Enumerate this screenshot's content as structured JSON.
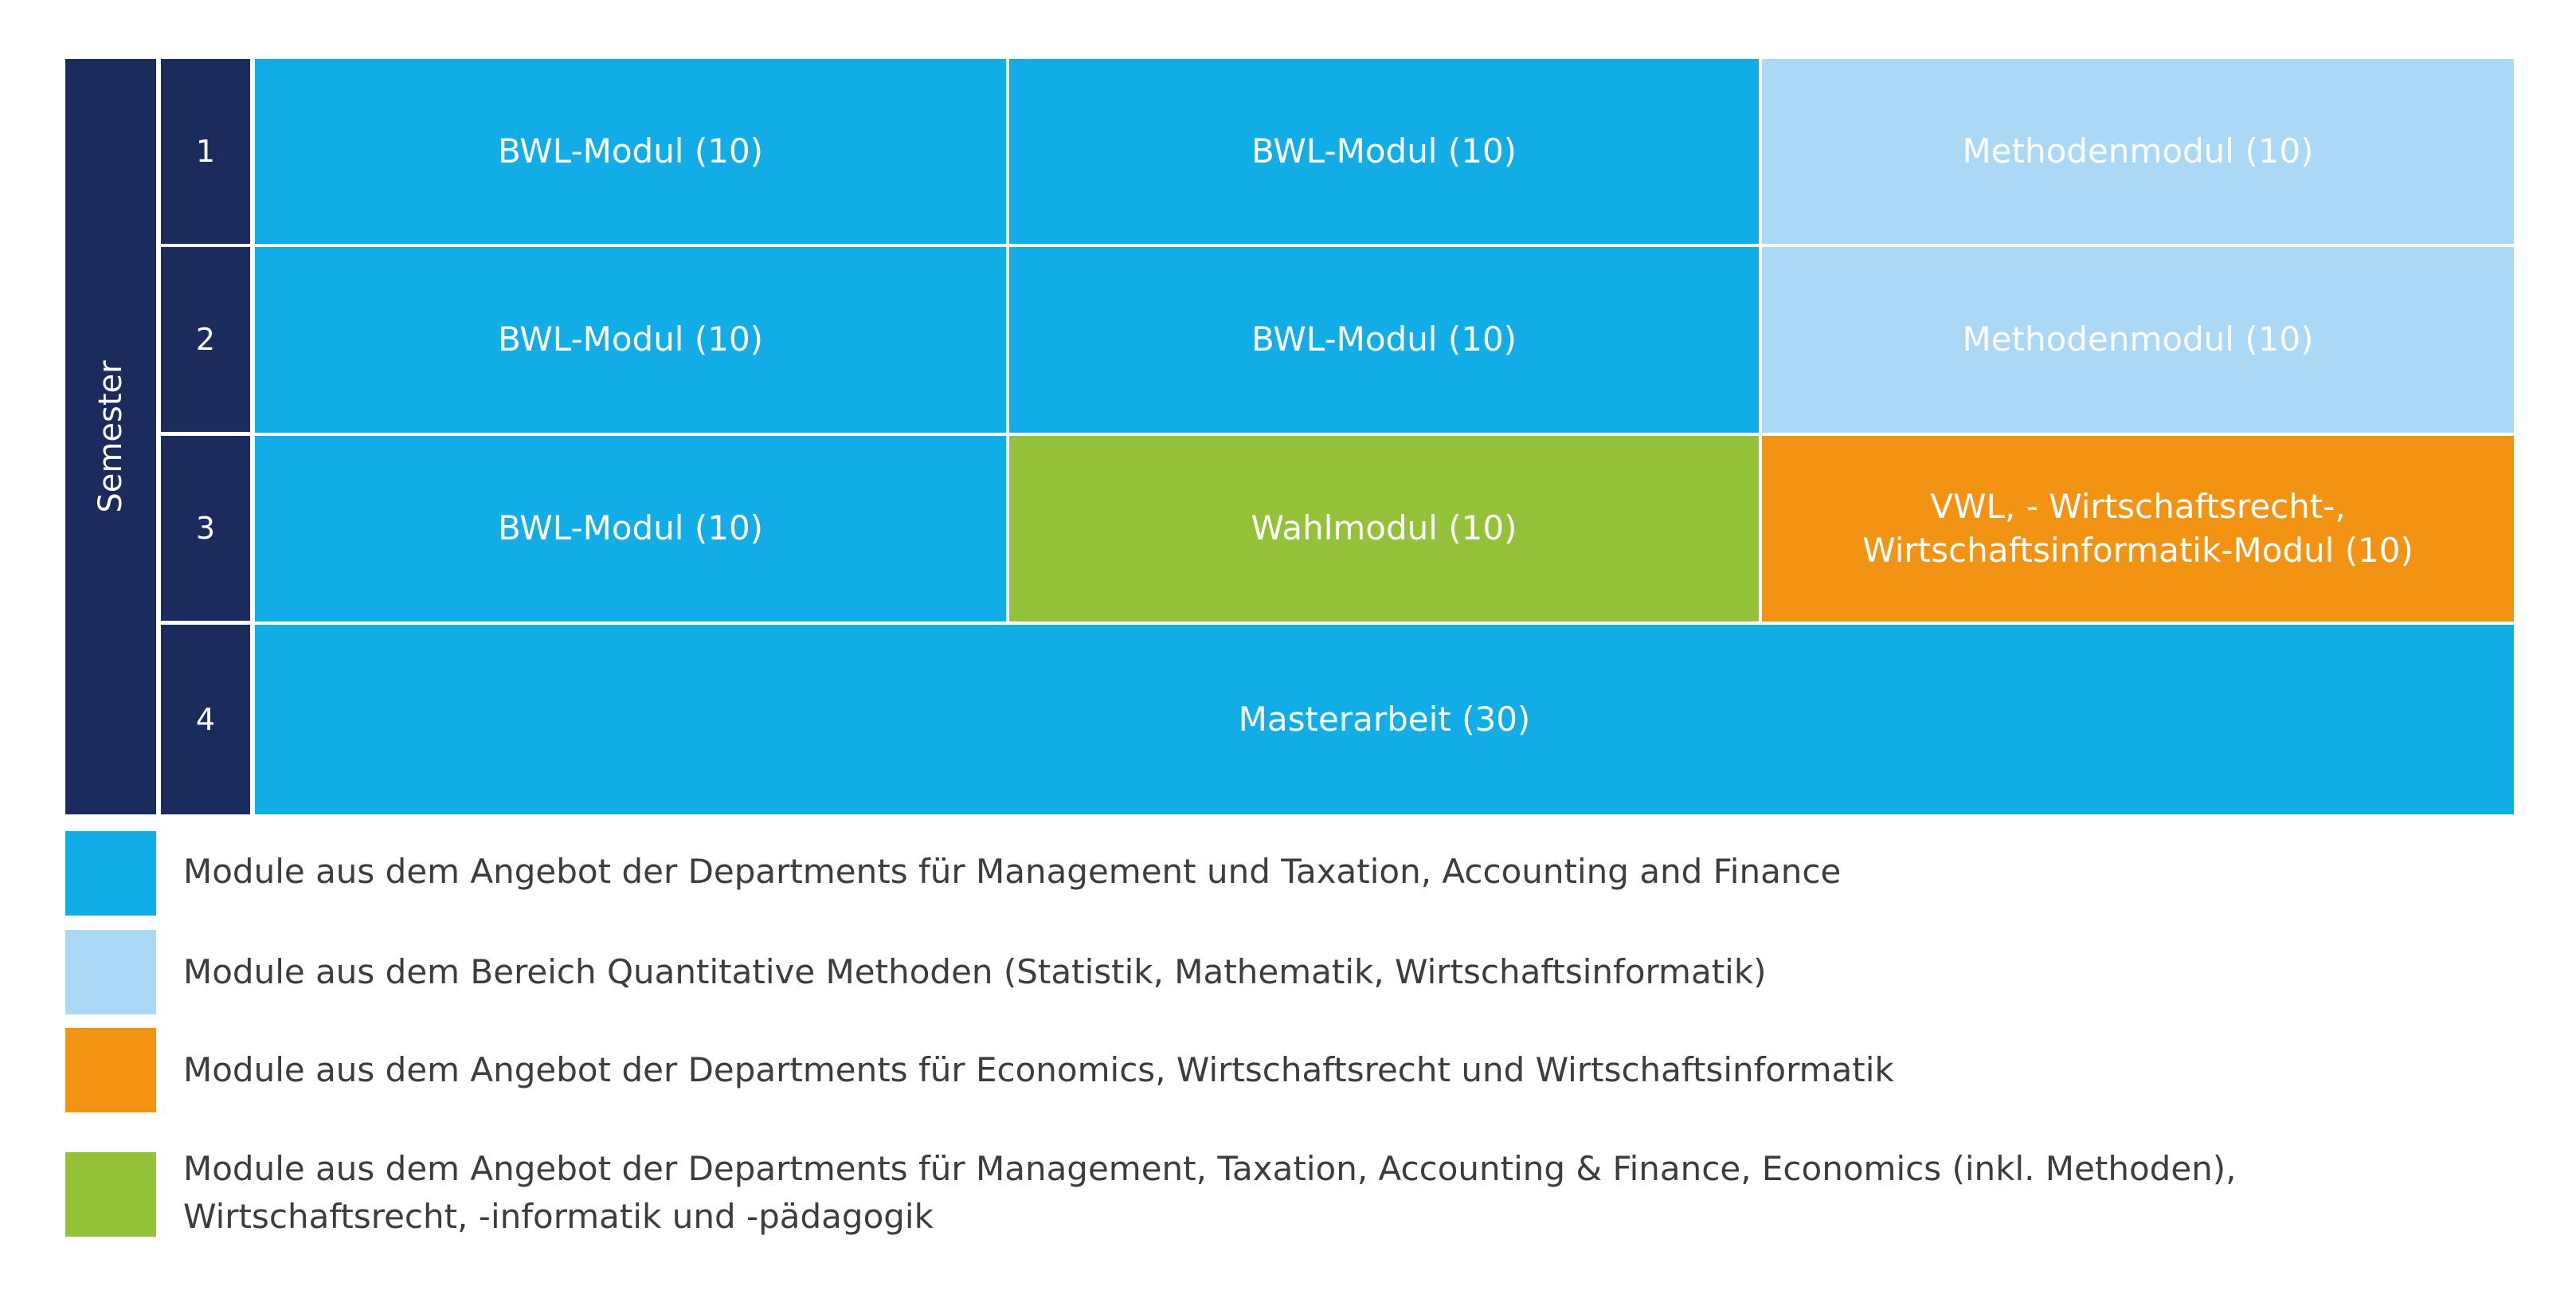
{
  "axis_label": "Semester",
  "colors": {
    "navy": "#1c2b5e",
    "bwl": "#12ade6",
    "methoden": "#abd8f4",
    "wahl": "#93c13a",
    "vwl": "#f39314"
  },
  "semesters": [
    {
      "number": "1",
      "cells": [
        {
          "label": "BWL-Modul (10)",
          "category": "bwl"
        },
        {
          "label": "BWL-Modul (10)",
          "category": "bwl"
        },
        {
          "label": "Methodenmodul (10)",
          "category": "methoden"
        }
      ]
    },
    {
      "number": "2",
      "cells": [
        {
          "label": "BWL-Modul (10)",
          "category": "bwl"
        },
        {
          "label": "BWL-Modul (10)",
          "category": "bwl"
        },
        {
          "label": "Methodenmodul (10)",
          "category": "methoden"
        }
      ]
    },
    {
      "number": "3",
      "cells": [
        {
          "label": "BWL-Modul (10)",
          "category": "bwl"
        },
        {
          "label": "Wahlmodul (10)",
          "category": "wahl"
        },
        {
          "label_line1": "VWL, - Wirtschaftsrecht-,",
          "label_line2": "Wirtschaftsinformatik-Modul (10)",
          "category": "vwl"
        }
      ]
    },
    {
      "number": "4",
      "cells": [
        {
          "label": "Masterarbeit (30)",
          "category": "bwl"
        }
      ]
    }
  ],
  "legend": [
    {
      "category": "bwl",
      "text": "Module aus dem Angebot der Departments für Management und Taxation, Accounting and Finance"
    },
    {
      "category": "methoden",
      "text": "Module aus dem Bereich Quantitative Methoden (Statistik, Mathematik, Wirtschaftsinformatik)"
    },
    {
      "category": "vwl",
      "text": "Module aus dem Angebot der Departments für Economics, Wirtschaftsrecht und Wirtschaftsinformatik"
    },
    {
      "category": "wahl",
      "text_line1": "Module aus dem Angebot der Departments für Management, Taxation, Accounting & Finance, Economics (inkl. Methoden),",
      "text_line2": "Wirtschaftsrecht, -informatik und -pädagogik"
    }
  ]
}
